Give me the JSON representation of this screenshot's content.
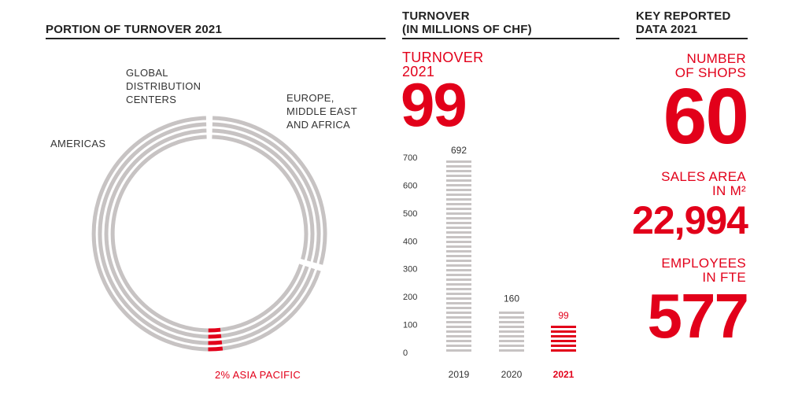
{
  "donut": {
    "title": "PORTION OF TURNOVER 2021",
    "labels": {
      "gdc": "GLOBAL\nDISTRIBUTION\nCENTERS",
      "emea": "EUROPE,\nMIDDLE EAST\nAND AFRICA",
      "americas": "AMERICAS",
      "apac": "2% ASIA PACIFIC"
    }
  },
  "bars_panel": {
    "title": "TURNOVER\n(IN MILLIONS OF CHF)",
    "highlight_label": "TURNOVER\n2021",
    "highlight_value": "99"
  },
  "kpi_panel": {
    "title": "KEY REPORTED\nDATA 2021",
    "items": [
      {
        "label": "NUMBER\nOF SHOPS",
        "value": "60"
      },
      {
        "label": "SALES AREA\nIN M²",
        "value": "22,994"
      },
      {
        "label": "EMPLOYEES\nIN FTE",
        "value": "577"
      }
    ]
  },
  "colors": {
    "accent": "#e2001a",
    "bar": "#c7c3c3",
    "text": "#222222"
  },
  "chart_data": [
    {
      "type": "pie",
      "title": "PORTION OF TURNOVER 2021",
      "slices": [
        {
          "label": "ASIA PACIFIC",
          "value": 2,
          "highlight": true
        }
      ],
      "segment_labels": [
        "GLOBAL DISTRIBUTION CENTERS",
        "EUROPE, MIDDLE EAST AND AFRICA",
        "AMERICAS"
      ]
    },
    {
      "type": "bar",
      "title": "TURNOVER (IN MILLIONS OF CHF)",
      "categories": [
        "2019",
        "2020",
        "2021"
      ],
      "values": [
        692,
        160,
        99
      ],
      "data_labels": [
        "692",
        "160",
        "99"
      ],
      "highlight_category": "2021",
      "yticks": [
        0,
        100,
        200,
        300,
        400,
        500,
        600,
        700
      ],
      "ylim": [
        0,
        700
      ]
    }
  ]
}
